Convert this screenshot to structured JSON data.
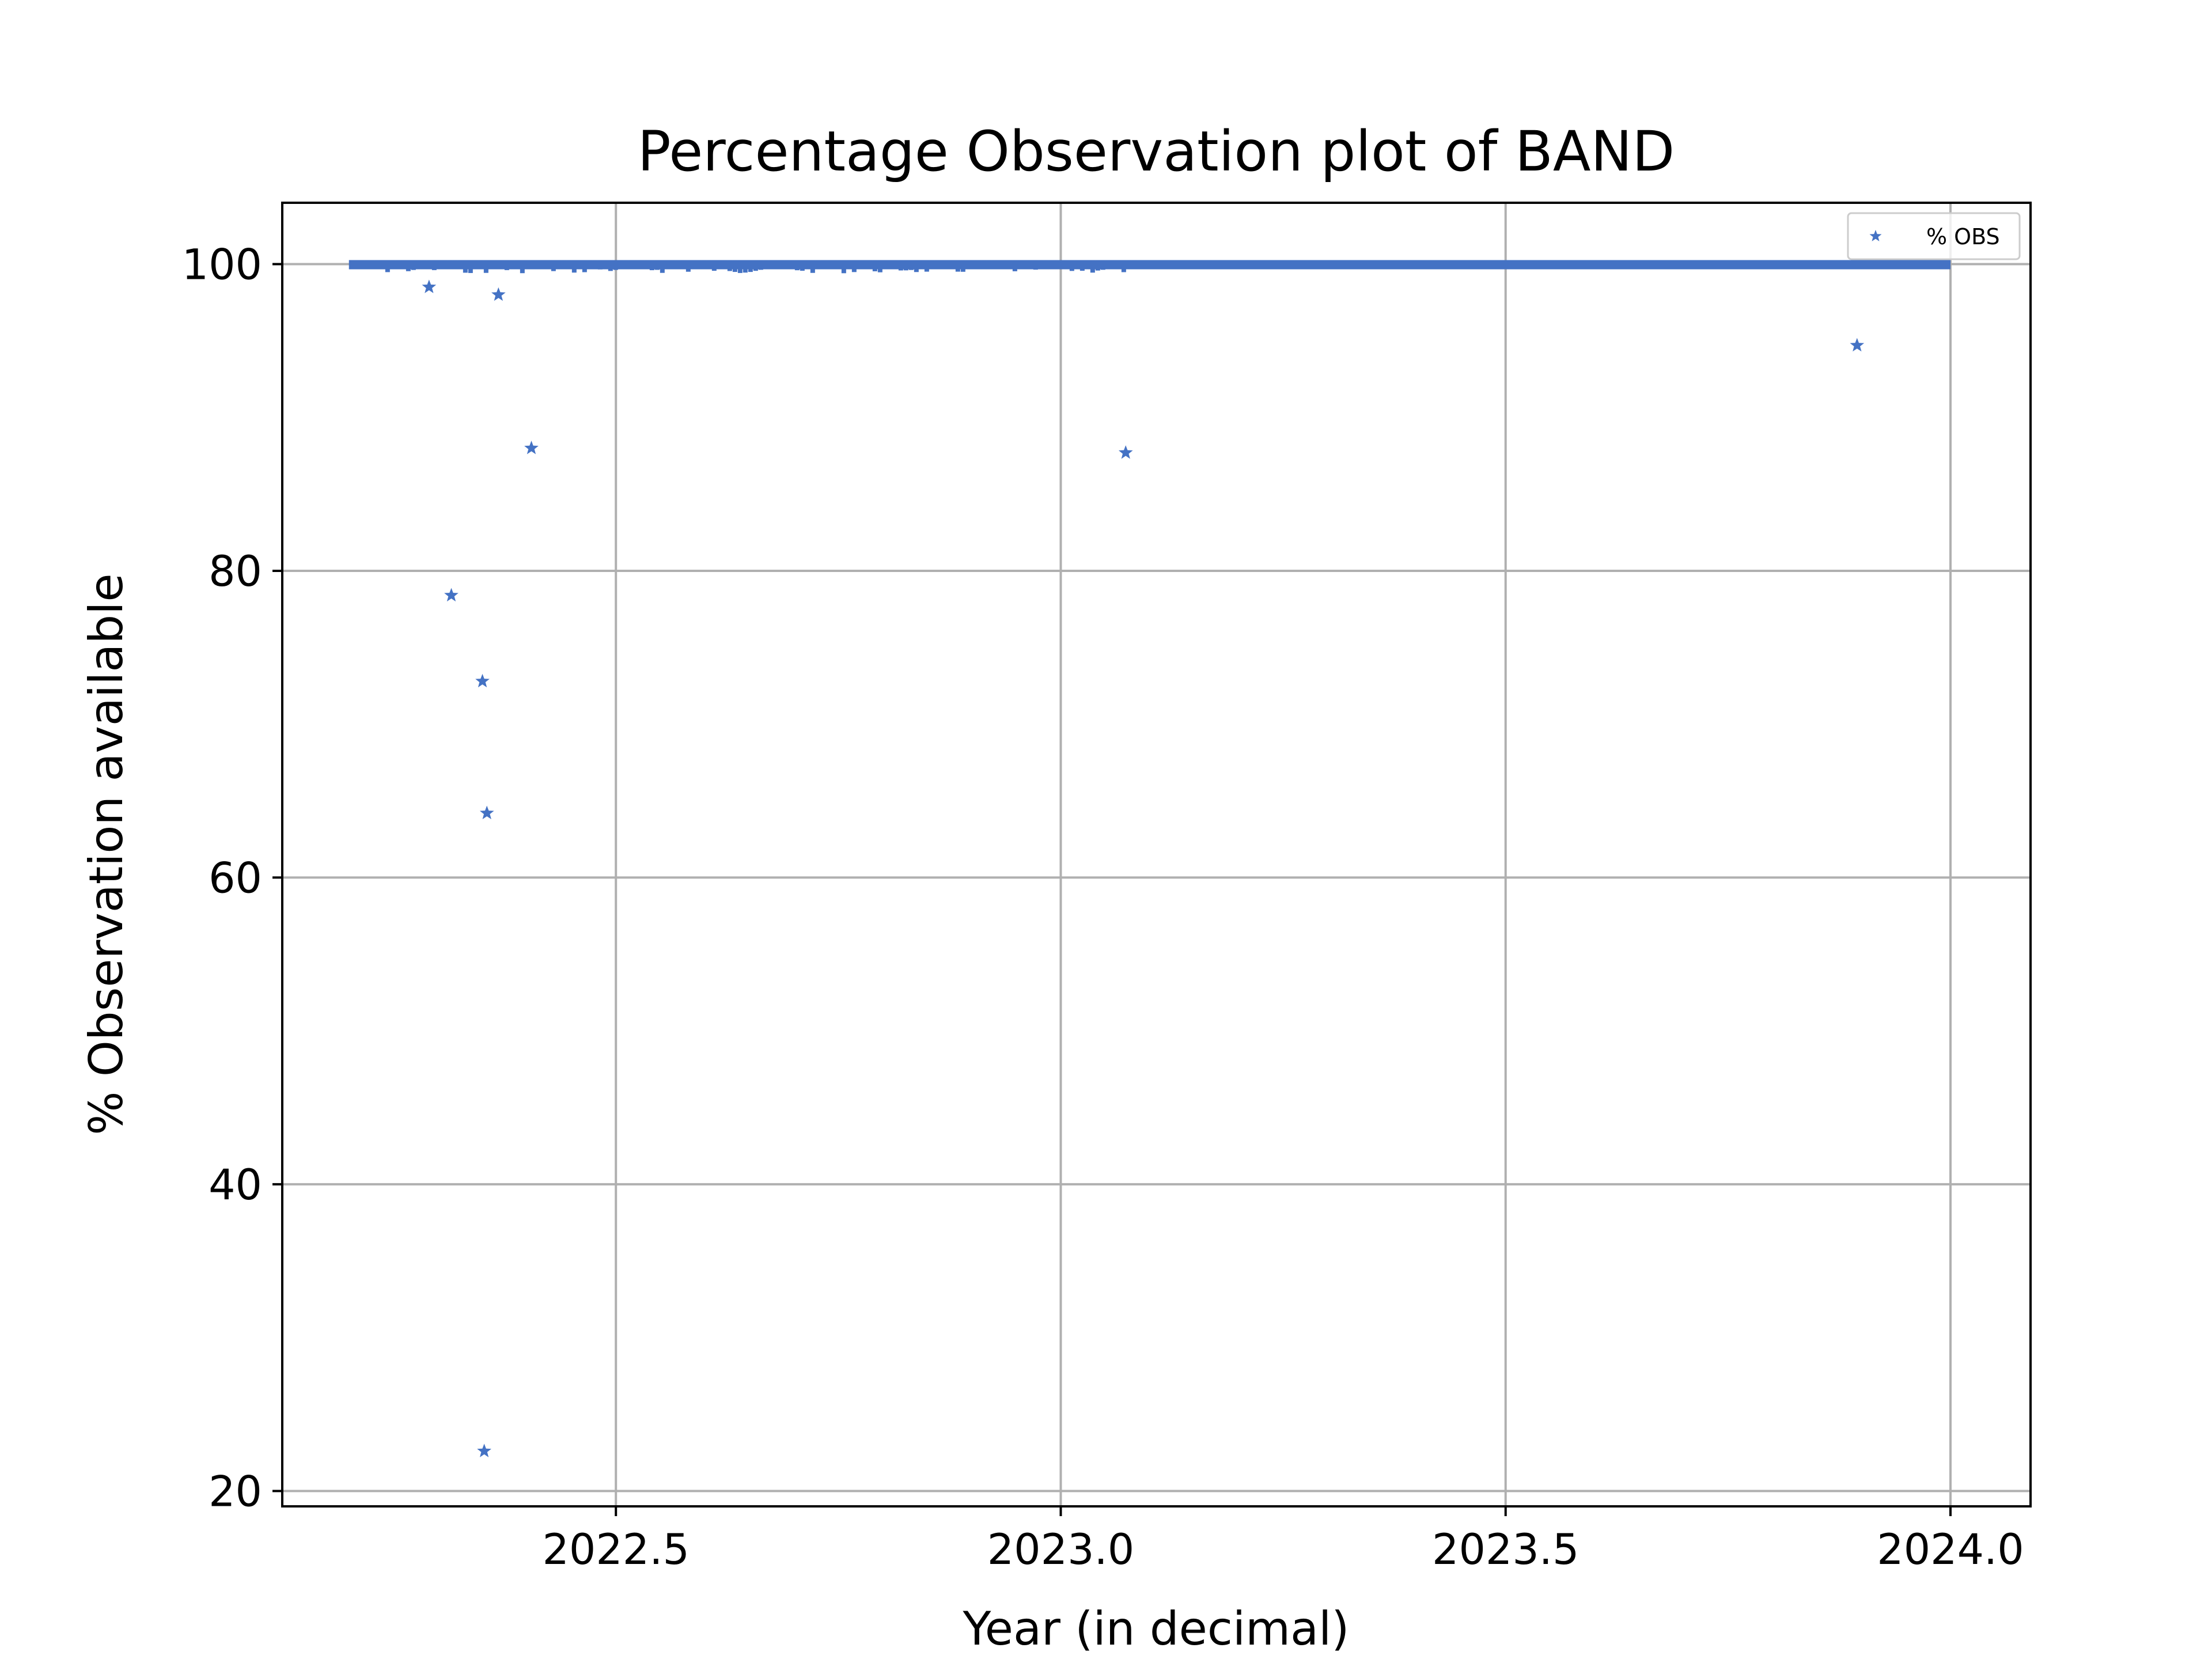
{
  "chart_data": {
    "type": "scatter",
    "title": "Percentage Observation plot of BAND",
    "xlabel": "Year (in decimal)",
    "ylabel": "% Observation available",
    "xlim": [
      2022.125,
      2024.09
    ],
    "ylim": [
      19,
      104
    ],
    "xticks": [
      2022.5,
      2023.0,
      2023.5,
      2024.0
    ],
    "xtick_labels": [
      "2022.5",
      "2023.0",
      "2023.5",
      "2024.0"
    ],
    "yticks": [
      20,
      40,
      60,
      80,
      100
    ],
    "ytick_labels": [
      "20",
      "40",
      "60",
      "80",
      "100"
    ],
    "grid": true,
    "legend_position": "top-right",
    "marker": "star",
    "series_color": "#4472C4",
    "series": [
      {
        "name": "% OBS",
        "dense_band": {
          "x_start": 2022.2,
          "x_end": 2024.0,
          "values_near": 100,
          "min_value": 99.4
        },
        "points": [
          {
            "x": 2022.29,
            "y": 98.5
          },
          {
            "x": 2022.315,
            "y": 78.4
          },
          {
            "x": 2022.35,
            "y": 72.8
          },
          {
            "x": 2022.352,
            "y": 22.6
          },
          {
            "x": 2022.355,
            "y": 64.2
          },
          {
            "x": 2022.368,
            "y": 98.0
          },
          {
            "x": 2022.405,
            "y": 88.0
          },
          {
            "x": 2023.073,
            "y": 87.7
          },
          {
            "x": 2023.895,
            "y": 94.7
          }
        ]
      }
    ]
  }
}
